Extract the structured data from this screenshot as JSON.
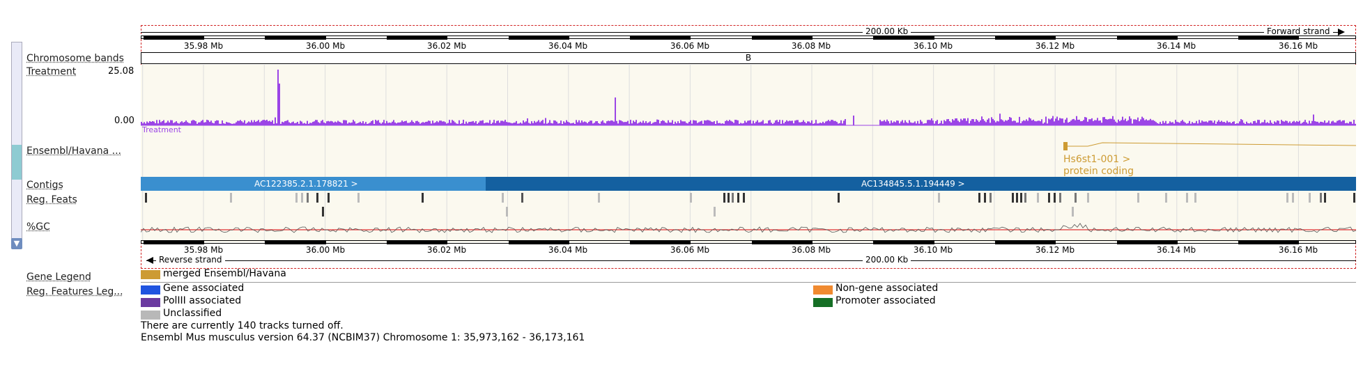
{
  "ruler": {
    "span_top": "200.00 Kb",
    "span_bottom": "200.00 Kb",
    "forward_strand": "Forward strand",
    "reverse_strand": "Reverse strand",
    "ticks": [
      "35.98 Mb",
      "36.00 Mb",
      "36.02 Mb",
      "36.04 Mb",
      "36.06 Mb",
      "36.08 Mb",
      "36.10 Mb",
      "36.12 Mb",
      "36.14 Mb",
      "36.16 Mb"
    ]
  },
  "tracks": {
    "chromosome_bands": {
      "label": "Chromosome bands",
      "band": "B"
    },
    "treatment": {
      "label": "Treatment",
      "max": "25.08",
      "min": "0.00",
      "name": "Treatment",
      "color": "#9b45e6"
    },
    "ensembl": {
      "label": "Ensembl/Havana ...",
      "transcript": "Hs6st1-001 >",
      "biotype": "protein coding",
      "color": "#cd9b33"
    },
    "contigs": {
      "label": "Contigs",
      "items": [
        {
          "name": "AC122385.2.1.178821 >",
          "color": "#3a8fcf"
        },
        {
          "name": "AC134845.5.1.194449 >",
          "color": "#1460a0"
        }
      ]
    },
    "reg_feats": {
      "label": "Reg. Feats"
    },
    "gc": {
      "label": "%GC"
    }
  },
  "legend": {
    "gene_legend_label": "Gene Legend",
    "gene_items": [
      {
        "text": "merged Ensembl/Havana",
        "color": "#cd9b33"
      }
    ],
    "reg_legend_label": "Reg. Features Leg...",
    "reg_items_left": [
      {
        "text": "Gene associated",
        "color": "#1f54e0"
      },
      {
        "text": "PolIII associated",
        "color": "#6a3aa0"
      },
      {
        "text": "Unclassified",
        "color": "#b8b8b8"
      }
    ],
    "reg_items_right": [
      {
        "text": "Non-gene  associated",
        "color": "#f08a30"
      },
      {
        "text": "Promoter associated",
        "color": "#156f25"
      }
    ]
  },
  "footer": {
    "tracks_off": "There are currently 140 tracks turned off.",
    "version": "Ensembl Mus musculus version 64.37 (NCBIM37) Chromosome 1: 35,973,162 - 36,173,161"
  }
}
